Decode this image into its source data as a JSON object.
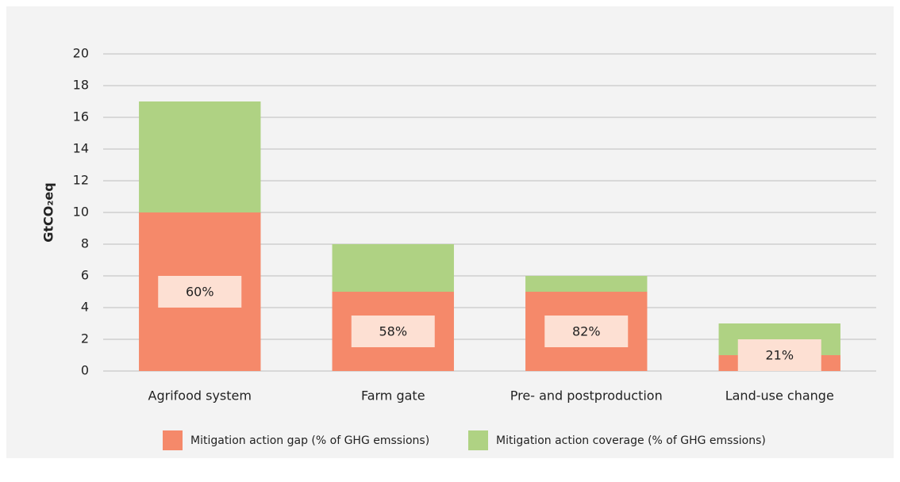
{
  "chart_data": {
    "type": "stacked_bar",
    "y_label": "GtCO₂eq",
    "categories": [
      "Agrifood system",
      "Farm gate",
      "Pre- and postproduction",
      "Land-use change"
    ],
    "series": [
      {
        "name": "Mitigation action gap (% of GHG emssions)",
        "color": "#f5896a",
        "values": [
          10,
          5,
          5,
          1
        ]
      },
      {
        "name": "Mitigation action coverage (% of GHG emssions)",
        "color": "#afd283",
        "values": [
          7,
          3,
          1,
          2
        ]
      }
    ],
    "annotations": [
      "60%",
      "58%",
      "82%",
      "21%"
    ],
    "ylim": [
      0,
      20
    ],
    "yticks": [
      0,
      2,
      4,
      6,
      8,
      10,
      12,
      14,
      16,
      18,
      20
    ],
    "grid": true,
    "legend": "bottom"
  }
}
